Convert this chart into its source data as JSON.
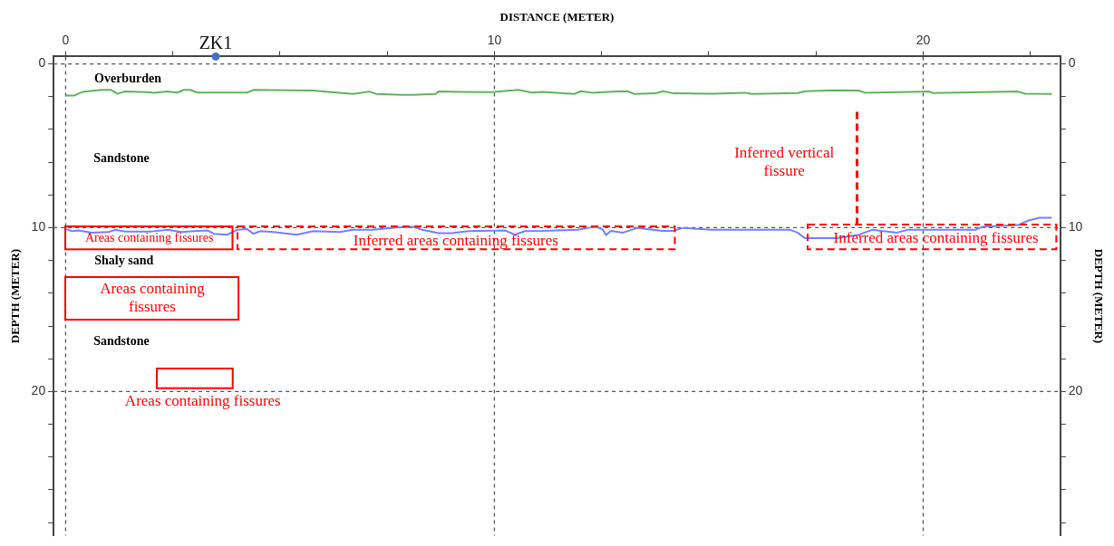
{
  "chart_data": {
    "type": "line",
    "xlabel": "DISTANCE (METER)",
    "ylabel": "DEPTH (METER)",
    "y2label": "DEPTH (METER)",
    "xlim": [
      -0.28,
      23.2
    ],
    "xticks": [
      0,
      {
        "value": 2.5,
        "label": null
      },
      {
        "value": 5,
        "label": null
      },
      {
        "value": 7.5,
        "label": null
      },
      10,
      {
        "value": 12.5,
        "label": null
      },
      {
        "value": 15,
        "label": null
      },
      {
        "value": 17.5,
        "label": null
      },
      20,
      {
        "value": 22.5,
        "label": null
      }
    ],
    "ylim": [
      28.8,
      -0.45
    ],
    "yticks": [
      0,
      {
        "value": 2,
        "label": null
      },
      {
        "value": 4,
        "label": null
      },
      {
        "value": 6,
        "label": null
      },
      {
        "value": 8,
        "label": null
      },
      10,
      {
        "value": 12,
        "label": null
      },
      {
        "value": 14,
        "label": null
      },
      {
        "value": 16,
        "label": null
      },
      {
        "value": 18,
        "label": null
      },
      20,
      {
        "value": 22,
        "label": null
      },
      {
        "value": 24,
        "label": null
      },
      {
        "value": 26,
        "label": null
      },
      {
        "value": 28,
        "label": null
      }
    ],
    "y2lim": [
      28.8,
      -0.45
    ],
    "y2ticks": [
      0,
      {
        "value": 2,
        "label": null
      },
      {
        "value": 4,
        "label": null
      },
      {
        "value": 6,
        "label": null
      },
      {
        "value": 8,
        "label": null
      },
      10,
      {
        "value": 12,
        "label": null
      },
      {
        "value": 14,
        "label": null
      },
      {
        "value": 16,
        "label": null
      },
      {
        "value": 18,
        "label": null
      },
      20,
      {
        "value": 22,
        "label": null
      },
      {
        "value": 24,
        "label": null
      },
      {
        "value": 26,
        "label": null
      },
      {
        "value": 28,
        "label": null
      }
    ],
    "grid": true,
    "marker": "none",
    "line_style": "solid",
    "series": [
      {
        "color": "#5fb35f",
        "x": [
          0,
          0.21,
          0.37,
          0.52,
          0.83,
          1.06,
          1.21,
          1.37,
          1.91,
          2.06,
          2.37,
          2.6,
          2.76,
          2.91,
          3.07,
          4.23,
          4.38,
          5.77,
          6.7,
          7.08,
          7.24,
          7.85,
          8.09,
          8.63,
          8.7,
          9.94,
          10.56,
          10.87,
          11.11,
          11.86,
          12.02,
          12.27,
          12.85,
          13.1,
          13.27,
          13.76,
          13.93,
          14.18,
          15.09,
          15.84,
          16.0,
          17.08,
          17.24,
          17.91,
          18.49,
          18.65,
          19.4,
          20.14,
          20.23,
          22.21,
          22.38,
          23.0
        ],
        "values": [
          1.93,
          1.93,
          1.73,
          1.67,
          1.59,
          1.59,
          1.83,
          1.69,
          1.73,
          1.77,
          1.69,
          1.75,
          1.59,
          1.59,
          1.75,
          1.75,
          1.59,
          1.63,
          1.83,
          1.69,
          1.83,
          1.89,
          1.89,
          1.83,
          1.69,
          1.73,
          1.59,
          1.75,
          1.71,
          1.84,
          1.67,
          1.76,
          1.69,
          1.67,
          1.84,
          1.8,
          1.67,
          1.8,
          1.82,
          1.76,
          1.84,
          1.78,
          1.67,
          1.61,
          1.63,
          1.76,
          1.73,
          1.69,
          1.78,
          1.69,
          1.82,
          1.84
        ]
      },
      {
        "color": "#7080ff",
        "x": [
          0,
          0.15,
          0.3,
          0.61,
          1.0,
          1.15,
          1.38,
          2.0,
          2.39,
          2.7,
          3.0,
          3.31,
          3.46,
          3.77,
          3.89,
          4.0,
          4.23,
          4.38,
          4.54,
          4.85,
          5.39,
          5.77,
          6.39,
          6.7,
          7.16,
          7.78,
          8.09,
          8.32,
          8.7,
          9.01,
          9.4,
          10.25,
          10.48,
          10.71,
          11.11,
          11.94,
          12.35,
          12.52,
          12.6,
          12.72,
          13.0,
          13.34,
          13.92,
          14.16,
          14.41,
          15.07,
          16.9,
          17.07,
          17.24,
          17.98,
          18.48,
          18.81,
          19.39,
          19.64,
          21.22,
          21.38,
          22.21,
          22.46,
          22.71,
          23.0
        ],
        "values": [
          10.08,
          10.21,
          10.17,
          10.31,
          10.27,
          10.13,
          10.23,
          10.23,
          10.13,
          10.27,
          10.21,
          10.17,
          10.37,
          10.43,
          10.27,
          10.13,
          10.08,
          10.37,
          10.21,
          10.27,
          10.43,
          10.21,
          10.27,
          10.13,
          10.13,
          9.98,
          9.94,
          10.13,
          10.33,
          10.33,
          10.21,
          10.17,
          10.43,
          10.21,
          10.2,
          10.13,
          9.94,
          10.09,
          10.45,
          10.2,
          10.3,
          10.01,
          10.2,
          10.2,
          10.01,
          10.13,
          10.13,
          10.3,
          10.64,
          10.64,
          10.45,
          10.13,
          10.3,
          10.13,
          10.13,
          9.94,
          9.84,
          9.56,
          9.39,
          9.39
        ]
      },
      {
        "type": "scatter",
        "name": "ZK1",
        "color": "#4472c4",
        "marker": "circle",
        "x": [
          3.5
        ],
        "values": [
          -0.45
        ]
      }
    ],
    "annotations": [
      "Overburden",
      "Sandstone",
      "Shaly sand",
      "Sandstone",
      "Areas containing fissures",
      "Inferred areas containing fissures",
      "Inferred areas containing fissures",
      "Areas containing fissures",
      "Areas containing fissures",
      "Inferred vertical fissure"
    ]
  }
}
